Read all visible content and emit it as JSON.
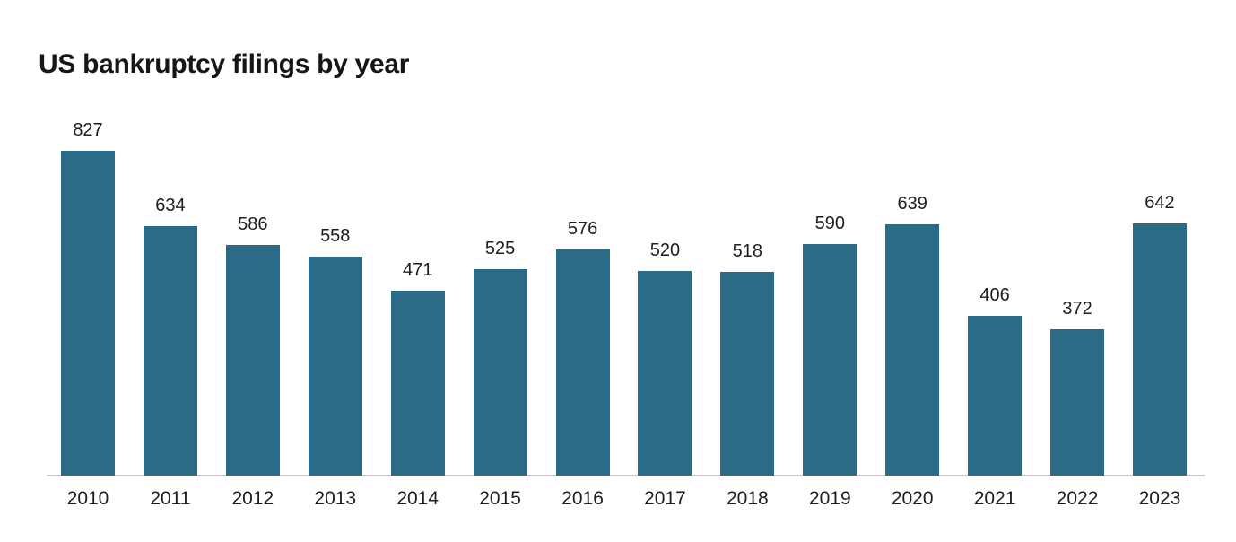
{
  "chart_data": {
    "type": "bar",
    "title": "US bankruptcy filings by year",
    "categories": [
      "2010",
      "2011",
      "2012",
      "2013",
      "2014",
      "2015",
      "2016",
      "2017",
      "2018",
      "2019",
      "2020",
      "2021",
      "2022",
      "2023"
    ],
    "values": [
      827,
      634,
      586,
      558,
      471,
      525,
      576,
      520,
      518,
      590,
      639,
      406,
      372,
      642
    ],
    "xlabel": "",
    "ylabel": "",
    "ylim": [
      0,
      827
    ],
    "data_labels": true,
    "legend": "none",
    "gridlines": false,
    "y_axis_visible": false,
    "colors": {
      "bar_fill": "#2b6b88",
      "label_text": "#1e1e1e",
      "title_text": "#161616",
      "axis_line": "#cbcbcb",
      "background": "#ffffff"
    }
  }
}
